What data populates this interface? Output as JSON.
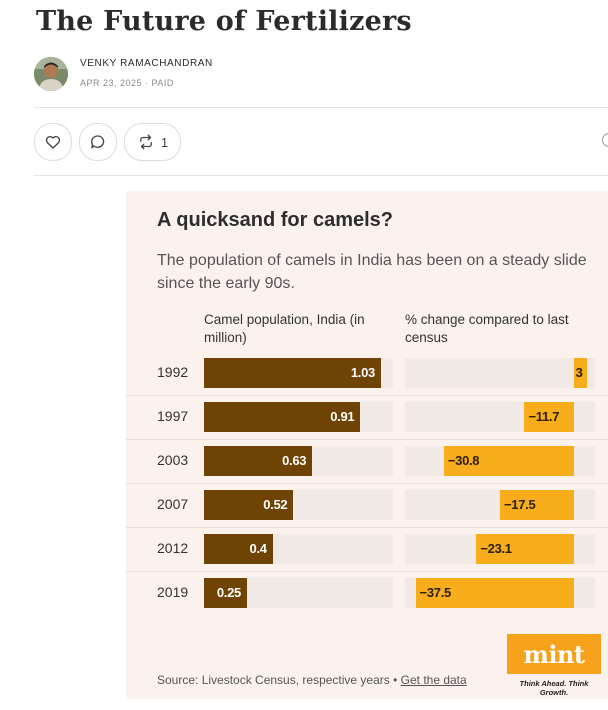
{
  "post": {
    "title": "The Future of Fertilizers",
    "author": "VENKY RAMACHANDRAN",
    "meta": "APR 23, 2025 · PAID"
  },
  "actions": {
    "like_icon": "heart-icon",
    "comment_icon": "comment-icon",
    "restack_icon": "restack-icon",
    "restack_count": "1"
  },
  "graphic": {
    "title": "A quicksand for camels?",
    "subtitle": "The population of camels in India has been on a steady slide since the early 90s.",
    "source_text": "Source: Livestock Census, respective years • ",
    "source_link": "Get the data",
    "logo": "mint",
    "logo_tagline": "Think Ahead. Think Growth."
  },
  "colors": {
    "population_bar": "#6e4304",
    "change_bar": "#f8ad1c",
    "logo": "#f7a21b",
    "card_background": "#fbf2ee"
  },
  "chart_data": {
    "type": "bar",
    "categories": [
      "1992",
      "1997",
      "2003",
      "2007",
      "2012",
      "2019"
    ],
    "series": [
      {
        "name": "Camel population, India (in million)",
        "values": [
          1.03,
          0.91,
          0.63,
          0.52,
          0.4,
          0.25
        ],
        "labels": [
          "1.03",
          "0.91",
          "0.63",
          "0.52",
          "0.4",
          "0.25"
        ]
      },
      {
        "name": "% change compared to last census",
        "values": [
          3,
          -11.7,
          -30.8,
          -17.5,
          -23.1,
          -37.5
        ],
        "labels": [
          "3",
          "−11.7",
          "−30.8",
          "−17.5",
          "−23.1",
          "−37.5"
        ]
      }
    ]
  }
}
